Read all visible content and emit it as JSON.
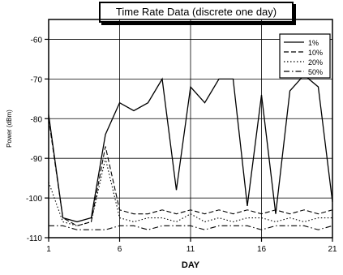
{
  "chart_data": {
    "type": "line",
    "title": "Time Rate Data (discrete one day)",
    "xlabel": "DAY",
    "ylabel": "Power (dBm)",
    "xlim": [
      1,
      21
    ],
    "ylim": [
      -110,
      -55
    ],
    "x_ticks": [
      1,
      6,
      11,
      16,
      21
    ],
    "y_ticks": [
      -60,
      -70,
      -80,
      -90,
      -100,
      -110
    ],
    "x": [
      1,
      2,
      3,
      4,
      5,
      6,
      7,
      8,
      9,
      10,
      11,
      12,
      13,
      14,
      15,
      16,
      17,
      18,
      19,
      20,
      21
    ],
    "grid": true,
    "legend_position": "top-right",
    "series": [
      {
        "name": "1%",
        "style": "solid",
        "values": [
          -79,
          -105,
          -106,
          -105,
          -84,
          -76,
          -78,
          -76,
          -70,
          -98,
          -72,
          -76,
          -70,
          -70,
          -102,
          -74,
          -104,
          -73,
          -69,
          -72,
          -101
        ]
      },
      {
        "name": "10%",
        "style": "dashed",
        "values": [
          -80,
          -105,
          -107,
          -106,
          -87,
          -103,
          -104,
          -104,
          -103,
          -104,
          -103,
          -104,
          -103,
          -104,
          -103,
          -104,
          -103,
          -104,
          -103,
          -104,
          -103
        ]
      },
      {
        "name": "20%",
        "style": "dotted",
        "values": [
          -96,
          -106,
          -107,
          -106,
          -90,
          -105,
          -106,
          -105,
          -105,
          -106,
          -104,
          -106,
          -105,
          -106,
          -105,
          -105,
          -106,
          -105,
          -106,
          -105,
          -105
        ]
      },
      {
        "name": "50%",
        "style": "dashdot",
        "values": [
          -107,
          -107,
          -108,
          -108,
          -108,
          -107,
          -107,
          -108,
          -107,
          -107,
          -107,
          -108,
          -107,
          -107,
          -107,
          -108,
          -107,
          -107,
          -107,
          -108,
          -107
        ]
      }
    ]
  }
}
